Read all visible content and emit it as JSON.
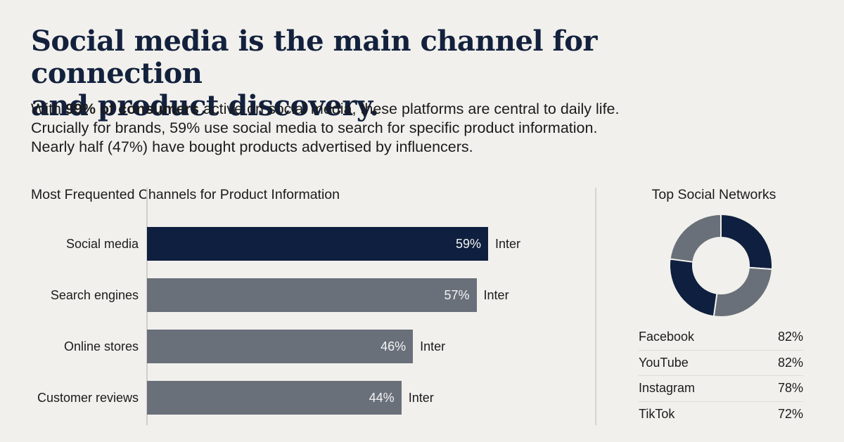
{
  "header": {
    "title_line1": "Social media is the main channel for connection",
    "title_line2": "and product discovery.",
    "intro": {
      "line1_pre": "With ",
      "line1_bold": "99% of consumers",
      "line1_post": " active on social media, these platforms are central to daily life.",
      "line2": "Crucially for brands, 59% use social media to search for specific product information.",
      "line3": "Nearly half (47%) have bought products advertised by influencers."
    }
  },
  "colors": {
    "background": "#f1f0ec",
    "navy": "#0f1f3f",
    "gray": "#6a707a",
    "title": "#13213d"
  },
  "chart_data": [
    {
      "type": "bar",
      "orientation": "horizontal",
      "title": "Most Frequented Channels for Product Information",
      "categories": [
        "Social media",
        "Search engines",
        "Online stores",
        "Customer reviews"
      ],
      "values": [
        59,
        57,
        46,
        44
      ],
      "unit": "%",
      "value_labels": [
        "59%",
        "57%",
        "46%",
        "44%"
      ],
      "suffix_labels": [
        "Inter",
        "Inter",
        "Inter",
        "Inter"
      ],
      "highlight_index": 0,
      "xlim": [
        0,
        100
      ],
      "xlabel": "",
      "ylabel": "",
      "grid": false
    },
    {
      "type": "pie",
      "variant": "donut",
      "title": "Top Social Networks",
      "labels": [
        "Facebook",
        "YouTube",
        "Instagram",
        "TikTok"
      ],
      "values": [
        82,
        82,
        78,
        72
      ],
      "unit": "%",
      "value_labels": [
        "82%",
        "82%",
        "78%",
        "72%"
      ],
      "legend": "below-table"
    }
  ]
}
